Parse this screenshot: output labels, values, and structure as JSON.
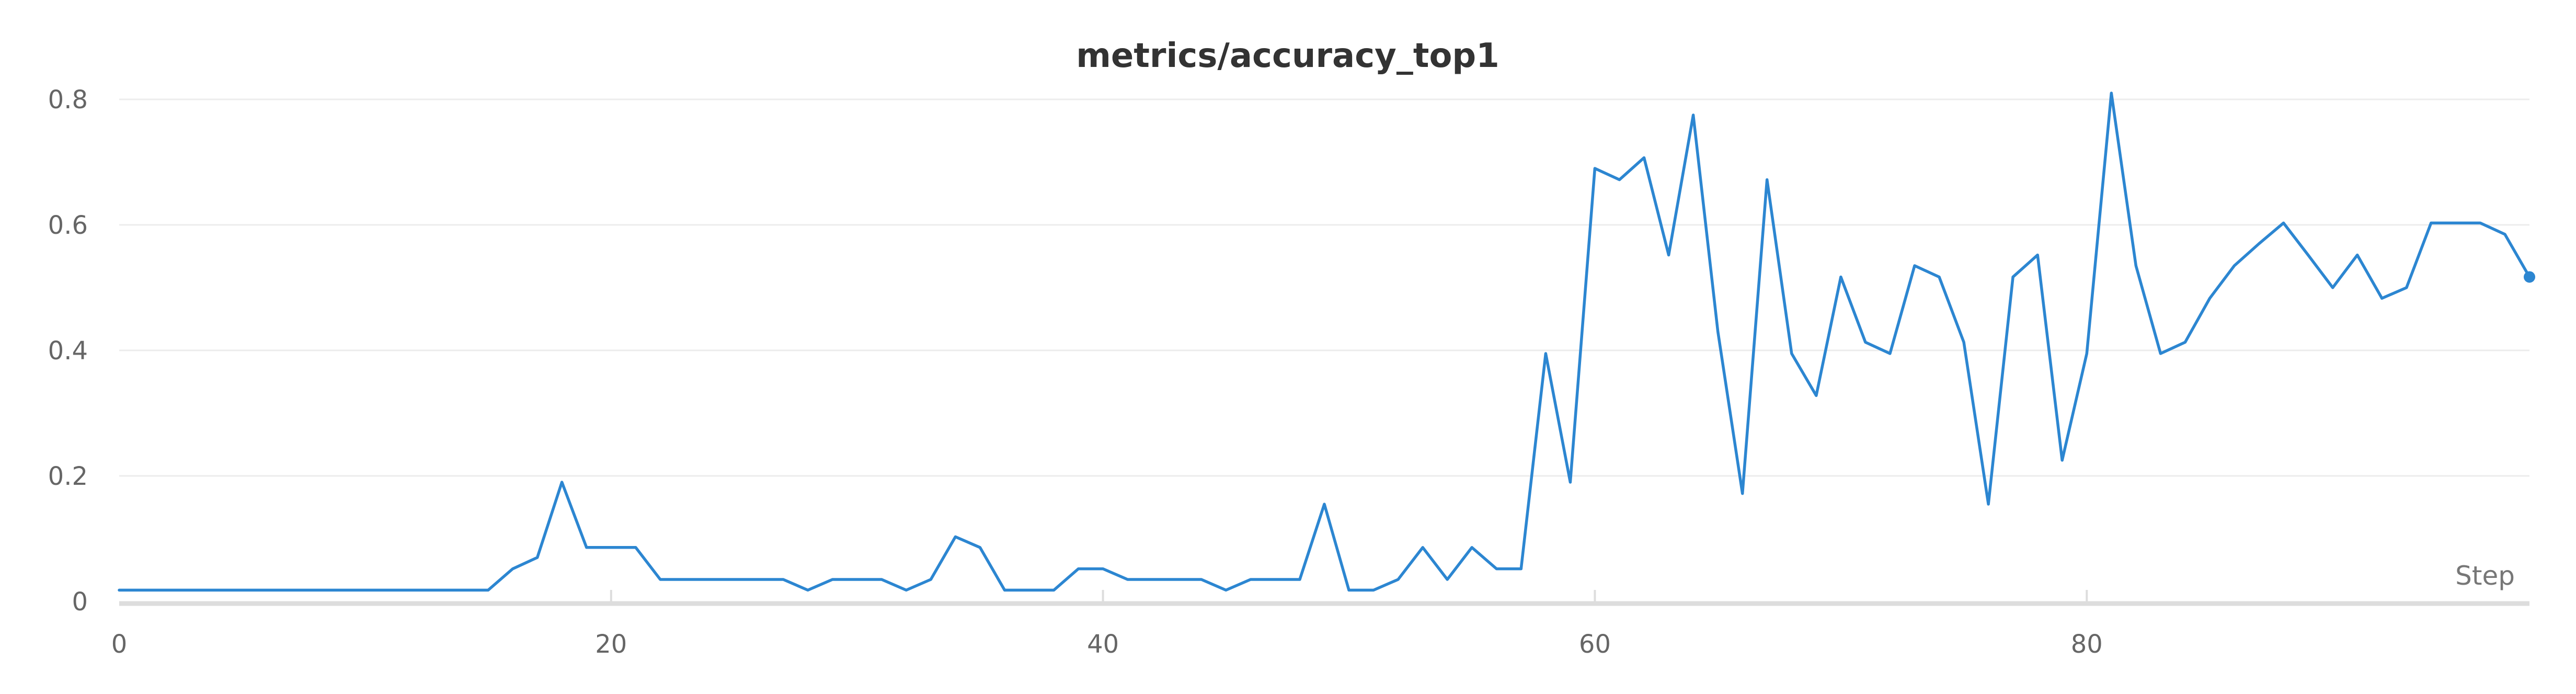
{
  "chart_data": {
    "type": "line",
    "title": "metrics/accuracy_top1",
    "xlabel": "Step",
    "ylabel": "",
    "xlim": [
      0,
      98
    ],
    "ylim": [
      0,
      0.8
    ],
    "x_ticks": [
      "0",
      "20",
      "40",
      "60",
      "80"
    ],
    "y_ticks": [
      "0",
      "0.2",
      "0.4",
      "0.6",
      "0.8"
    ],
    "grid": true,
    "legend": "none",
    "colors": {
      "line": "#2c86d1",
      "grid": "#ececec",
      "axis": "#dddddd"
    },
    "series": [
      {
        "x": [
          0,
          1,
          2,
          3,
          4,
          5,
          6,
          7,
          8,
          9,
          10,
          11,
          12,
          13,
          14,
          15,
          16,
          17,
          18,
          19,
          20,
          21,
          22,
          23,
          24,
          25,
          26,
          27,
          28,
          29,
          30,
          31,
          32,
          33,
          34,
          35,
          36,
          37,
          38,
          39,
          40,
          41,
          42,
          43,
          44,
          45,
          46,
          47,
          48,
          49,
          50,
          51,
          52,
          53,
          54,
          55,
          56,
          57,
          58,
          59,
          60,
          61,
          62,
          63,
          64,
          65,
          66,
          67,
          68,
          69,
          70,
          71,
          72,
          73,
          74,
          75,
          76,
          77,
          78,
          79,
          80,
          81,
          82,
          83,
          84,
          85,
          86,
          87,
          88,
          89,
          90,
          91,
          92,
          93,
          94,
          95,
          96,
          97,
          98
        ],
        "values": [
          0.018,
          0.018,
          0.018,
          0.018,
          0.018,
          0.018,
          0.018,
          0.018,
          0.018,
          0.018,
          0.018,
          0.018,
          0.018,
          0.018,
          0.018,
          0.018,
          0.052,
          0.07,
          0.19,
          0.086,
          0.086,
          0.086,
          0.035,
          0.035,
          0.035,
          0.035,
          0.035,
          0.035,
          0.018,
          0.035,
          0.035,
          0.035,
          0.018,
          0.035,
          0.103,
          0.086,
          0.018,
          0.018,
          0.018,
          0.052,
          0.052,
          0.035,
          0.035,
          0.035,
          0.035,
          0.018,
          0.035,
          0.035,
          0.035,
          0.155,
          0.018,
          0.018,
          0.035,
          0.086,
          0.035,
          0.086,
          0.052,
          0.052,
          0.395,
          0.19,
          0.69,
          0.672,
          0.707,
          0.552,
          0.775,
          0.43,
          0.172,
          0.672,
          0.395,
          0.328,
          0.517,
          0.413,
          0.395,
          0.535,
          0.517,
          0.413,
          0.155,
          0.517,
          0.552,
          0.225,
          0.395,
          0.81,
          0.535,
          0.395,
          0.413,
          0.483,
          0.535,
          0.57,
          0.603,
          0.552,
          0.5,
          0.552,
          0.483,
          0.5,
          0.603,
          0.603,
          0.603,
          0.585,
          0.517
        ]
      }
    ]
  }
}
